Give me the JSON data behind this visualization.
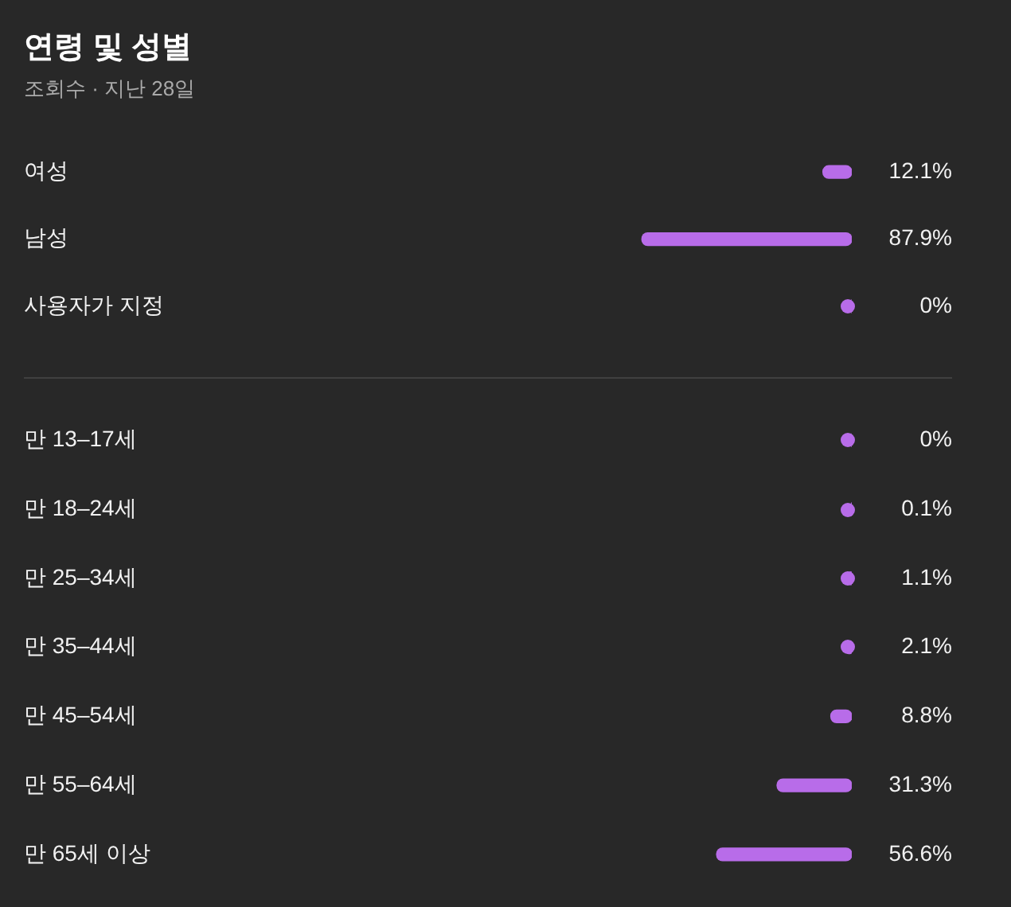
{
  "chart_data": [
    {
      "type": "bar",
      "title": "연령 및 성별",
      "subtitle": "조회수 · 지난 28일",
      "orientation": "horizontal",
      "categories": [
        "여성",
        "남성",
        "사용자가 지정"
      ],
      "values": [
        12.1,
        87.9,
        0
      ],
      "value_labels": [
        "12.1%",
        "87.9%",
        "0%"
      ],
      "color": "#b86ce9",
      "tick_labels": "y"
    },
    {
      "type": "bar",
      "orientation": "horizontal",
      "categories": [
        "만 13–17세",
        "만 18–24세",
        "만 25–34세",
        "만 35–44세",
        "만 45–54세",
        "만 55–64세",
        "만 65세 이상"
      ],
      "values": [
        0,
        0.1,
        1.1,
        2.1,
        8.8,
        31.3,
        56.6
      ],
      "value_labels": [
        "0%",
        "0.1%",
        "1.1%",
        "2.1%",
        "8.8%",
        "31.3%",
        "56.6%"
      ],
      "color": "#b86ce9",
      "tick_labels": "y"
    }
  ]
}
